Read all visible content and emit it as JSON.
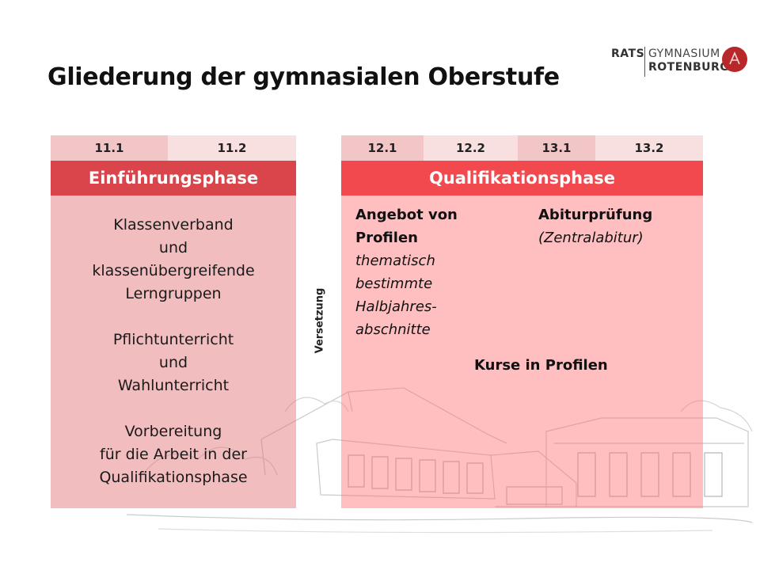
{
  "title": "Gliederung der gymnasialen Oberstufe",
  "logo": {
    "rats": "RATS",
    "gymnasium": "GYMNASIUM",
    "rotenburg": "ROTENBURG"
  },
  "semesters": [
    "11.1",
    "11.2",
    "12.1",
    "12.2",
    "13.1",
    "13.2"
  ],
  "phases": {
    "intro": "Einführungsphase",
    "qualification": "Qualifikationsphase"
  },
  "intro_content": {
    "block1": [
      "Klassenverband",
      "und",
      "klassenübergreifende",
      "Lerngruppen"
    ],
    "block2": [
      "Pflichtunterricht",
      "und",
      "Wahlunterricht"
    ],
    "block3": [
      "Vorbereitung",
      "für die Arbeit in der",
      "Qualifikationsphase"
    ]
  },
  "transition_label": "Versetzung",
  "qualification_content": {
    "profiles_heading": [
      "Angebot von",
      "Profilen"
    ],
    "profiles_note": [
      "thematisch",
      "bestimmte",
      "Halbjahres-",
      "abschnitte"
    ],
    "exam_heading": "Abiturprüfung",
    "exam_note": "(Zentralabitur)",
    "courses": "Kurse in Profilen"
  },
  "colors": {
    "head_dark": "#f2c6c7",
    "head_light": "#f9e0e0",
    "phase_intro": "#d9454b",
    "phase_qual": "#f2494f",
    "body_intro": "#f0b8b9",
    "body_qual": "#ffb9bb",
    "logo_accent": "#b8282a"
  }
}
